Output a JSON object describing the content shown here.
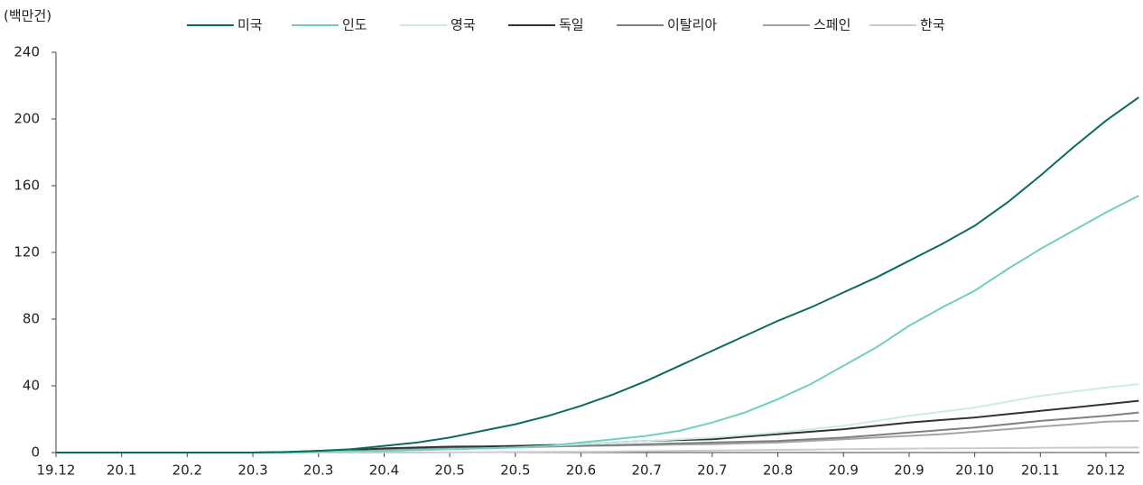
{
  "chart_data": {
    "type": "line",
    "y_unit": "(백만건)",
    "categories": [
      "19.12",
      null,
      "20.1",
      null,
      "20.2",
      null,
      "20.3",
      null,
      "20.3",
      null,
      "20.4",
      null,
      "20.5",
      null,
      "20.5",
      null,
      "20.6",
      null,
      "20.7",
      null,
      "20.7",
      null,
      "20.8",
      null,
      "20.9",
      null,
      "20.9",
      null,
      "20.10",
      null,
      "20.11",
      null,
      "20.12",
      null
    ],
    "ylim": [
      0,
      240
    ],
    "yticks": [
      0,
      40,
      80,
      120,
      160,
      200,
      240
    ],
    "series": [
      {
        "name": "미국",
        "color": "#0a6b5e",
        "values": [
          0,
          0,
          0,
          0,
          0,
          0,
          0,
          0.3,
          1,
          2,
          4,
          6,
          9,
          13,
          17,
          22,
          28,
          35,
          43,
          52,
          61,
          70,
          79,
          87,
          96,
          105,
          115,
          125,
          136,
          150,
          166,
          183,
          199,
          213
        ]
      },
      {
        "name": "인도",
        "color": "#6fcfc0",
        "values": [
          0,
          0,
          0,
          0,
          0,
          0,
          0,
          0,
          0.5,
          0.8,
          1,
          1.5,
          2,
          2.5,
          3,
          4,
          6,
          8,
          10,
          13,
          18,
          24,
          32,
          41,
          52,
          63,
          76,
          87,
          97,
          110,
          122,
          133,
          144,
          154
        ]
      },
      {
        "name": "영국",
        "color": "#c8ede7",
        "values": [
          0,
          0,
          0,
          0,
          0,
          0,
          0,
          0,
          0.3,
          0.6,
          1,
          1.5,
          2,
          2.5,
          3,
          4,
          5,
          6,
          7,
          8,
          9,
          10.5,
          12,
          14,
          16,
          19,
          22,
          24.5,
          27,
          30.5,
          34,
          36.5,
          39,
          41
        ]
      },
      {
        "name": "독일",
        "color": "#333333",
        "values": [
          0,
          0,
          0,
          0,
          0,
          0,
          0,
          0.2,
          1,
          1.5,
          2.5,
          3,
          3.5,
          3.7,
          4,
          4.5,
          5,
          6,
          7,
          7.5,
          8,
          9.5,
          11,
          12.5,
          14,
          16,
          18,
          19.5,
          21,
          23,
          25,
          27,
          29,
          31
        ]
      },
      {
        "name": "이탈리아",
        "color": "#808080",
        "values": [
          0,
          0,
          0,
          0,
          0,
          0,
          0,
          0.1,
          0.5,
          1,
          1.5,
          2,
          2.5,
          3,
          3.5,
          3.8,
          4,
          4.5,
          5,
          5.5,
          6,
          6.5,
          7,
          8,
          9,
          10.5,
          12,
          13.5,
          15,
          17,
          19,
          20.5,
          22,
          24
        ]
      },
      {
        "name": "스페인",
        "color": "#a6a6a6",
        "values": [
          0,
          0,
          0,
          0,
          0,
          0,
          0,
          0.1,
          0.5,
          0.8,
          1,
          1.5,
          2,
          2.5,
          3,
          3.5,
          4,
          4.2,
          4.5,
          4.8,
          5,
          5.5,
          6,
          7,
          8,
          9,
          10,
          11,
          12.5,
          14,
          15.5,
          17,
          18.5,
          19
        ]
      },
      {
        "name": "한국",
        "color": "#cccccc",
        "values": [
          0,
          0,
          0,
          0,
          0,
          0,
          0,
          0,
          0,
          0,
          0,
          0,
          0.1,
          0.2,
          0.3,
          0.4,
          0.5,
          0.6,
          0.8,
          1,
          1.2,
          1.4,
          1.6,
          1.8,
          2,
          2.2,
          2.4,
          2.5,
          2.6,
          2.7,
          2.8,
          2.9,
          3,
          3
        ]
      }
    ]
  }
}
